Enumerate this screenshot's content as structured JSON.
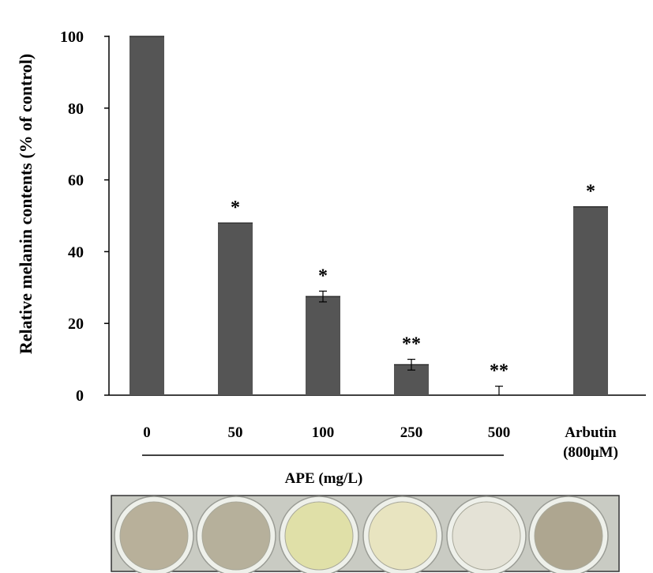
{
  "chart_data": {
    "type": "bar",
    "categories": [
      "0",
      "50",
      "100",
      "250",
      "500",
      "Arbutin"
    ],
    "category_sublabels": [
      "",
      "",
      "",
      "",
      "",
      "(800μM)"
    ],
    "values": [
      100,
      48,
      27.5,
      8.5,
      0,
      52.5
    ],
    "errors": [
      0,
      0,
      1.5,
      1.5,
      2.5,
      0
    ],
    "annotations": [
      "",
      "*",
      "*",
      "**",
      "**",
      "*"
    ],
    "ylabel": "Relative melanin contents  (% of control)",
    "xlabel": "APE  (mg/L)",
    "ylim": [
      0,
      100
    ],
    "yticks": [
      "0",
      "20",
      "40",
      "60",
      "80",
      "100"
    ],
    "grid": false,
    "bar_color": "#555555"
  },
  "photo": {
    "well_colors": [
      "#b8b09a",
      "#b6b09b",
      "#e0e0a8",
      "#e8e4c0",
      "#e4e2d6",
      "#aea690"
    ],
    "background_color": "#c9cbc3"
  }
}
